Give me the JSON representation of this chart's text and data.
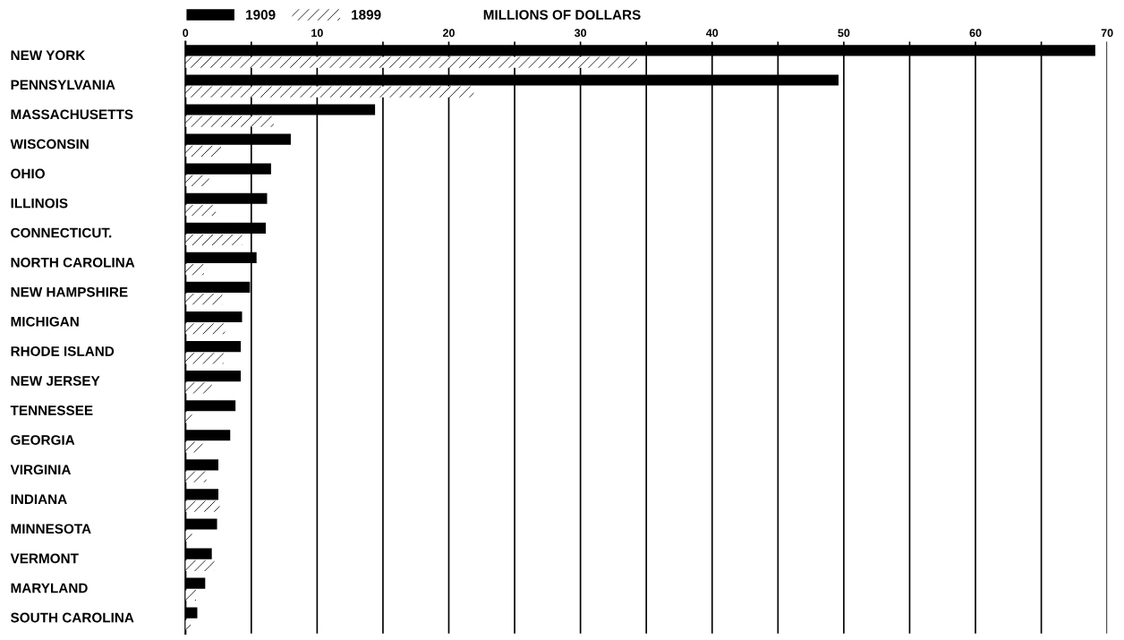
{
  "chart_data": {
    "type": "bar",
    "orientation": "horizontal",
    "xlabel": "MILLIONS OF DOLLARS",
    "categories": [
      "NEW YORK",
      "PENNSYLVANIA",
      "MASSACHUSETTS",
      "WISCONSIN",
      "OHIO",
      "ILLINOIS",
      "CONNECTICUT.",
      "NORTH CAROLINA",
      "NEW HAMPSHIRE",
      "MICHIGAN",
      "RHODE ISLAND",
      "NEW JERSEY",
      "TENNESSEE",
      "GEORGIA",
      "VIRGINIA",
      "INDIANA",
      "MINNESOTA",
      "VERMONT",
      "MARYLAND",
      "SOUTH CAROLINA"
    ],
    "series": [
      {
        "name": "1909",
        "color": "#000000",
        "values": [
          69.1,
          49.6,
          14.4,
          8.0,
          6.5,
          6.2,
          6.1,
          5.4,
          4.9,
          4.3,
          4.2,
          4.2,
          3.8,
          3.4,
          2.5,
          2.5,
          2.4,
          2.0,
          1.5,
          0.9
        ]
      },
      {
        "name": "1899",
        "color": "#ffffff",
        "values": [
          34.3,
          21.9,
          6.7,
          2.7,
          1.8,
          2.3,
          4.3,
          1.4,
          2.8,
          3.0,
          2.9,
          2.0,
          0.5,
          1.3,
          1.6,
          2.6,
          0.5,
          2.2,
          0.8,
          0.4
        ]
      }
    ],
    "xlim": [
      0,
      70
    ],
    "xticks": [
      0,
      {
        "value": 5,
        "label": null
      },
      10,
      {
        "value": 15,
        "label": null
      },
      20,
      {
        "value": 25,
        "label": null
      },
      30,
      {
        "value": 35,
        "label": null
      },
      40,
      {
        "value": 45,
        "label": null
      },
      50,
      {
        "value": 55,
        "label": null
      },
      60,
      {
        "value": 65,
        "label": null
      },
      70
    ],
    "grid": "x",
    "legend": "top left"
  }
}
